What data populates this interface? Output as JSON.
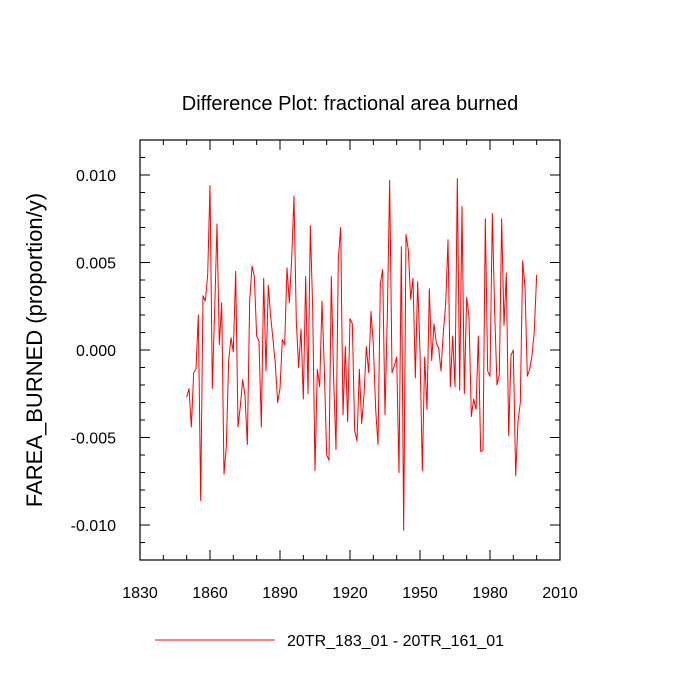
{
  "chart_data": {
    "type": "line",
    "title": "Difference Plot: fractional area burned",
    "xlabel": "",
    "ylabel": "FAREA_BURNED  (proportion/y)",
    "xlim": [
      1830,
      2010
    ],
    "ylim": [
      -0.012,
      0.012
    ],
    "xticks": [
      1830,
      1860,
      1890,
      1920,
      1950,
      1980,
      2010
    ],
    "xtick_labels": [
      "1830",
      "1860",
      "1890",
      "1920",
      "1950",
      "1980",
      "2010"
    ],
    "yticks": [
      -0.01,
      -0.005,
      0.0,
      0.005,
      0.01
    ],
    "ytick_labels": [
      "-0.010",
      "-0.005",
      "0.000",
      "0.005",
      "0.010"
    ],
    "grid": false,
    "legend_position": "bottom-center",
    "series": [
      {
        "name": "20TR_183_01 - 20TR_161_01",
        "color": "#ff0000",
        "x_start": 1850,
        "x_step": 1,
        "values": [
          -0.0027,
          -0.0022,
          -0.0044,
          -0.0013,
          -0.0011,
          0.002,
          -0.0086,
          0.0031,
          0.0028,
          0.0043,
          0.0094,
          -0.0022,
          0.0023,
          0.0072,
          0.0003,
          0.0027,
          -0.0071,
          -0.0055,
          -0.0006,
          0.0007,
          -0.0001,
          0.0045,
          -0.0044,
          -0.0032,
          -0.0017,
          -0.0026,
          -0.0054,
          0.0028,
          0.0048,
          0.0042,
          0.0008,
          0.0005,
          -0.0044,
          0.0041,
          -0.0012,
          0.0037,
          0.0019,
          0.0006,
          -0.0008,
          -0.003,
          -0.0022,
          0.0006,
          0.0003,
          0.0047,
          0.0027,
          0.0052,
          0.0088,
          0.0016,
          -0.001,
          0.0012,
          -0.0028,
          0.0042,
          -0.0025,
          0.0071,
          0.0024,
          -0.0069,
          -0.0011,
          -0.0021,
          0.0028,
          -0.0011,
          -0.006,
          -0.0063,
          0.0042,
          -0.0017,
          -0.0057,
          0.0052,
          0.007,
          -0.0037,
          0.0002,
          -0.0041,
          0.0018,
          0.0015,
          -0.0046,
          -0.0052,
          -0.0011,
          -0.0042,
          -0.0026,
          0.0002,
          -0.0013,
          0.0022,
          0.0003,
          -0.0034,
          -0.0054,
          0.0038,
          0.0046,
          -0.0037,
          0.002,
          0.0097,
          -0.0013,
          -0.0009,
          -0.0004,
          -0.007,
          0.0059,
          -0.0103,
          0.0066,
          0.0057,
          0.0029,
          0.0041,
          -0.0016,
          0.0039,
          -0.0001,
          -0.0069,
          -0.0004,
          -0.0034,
          0.0035,
          -0.0006,
          0.0015,
          0.0004,
          0.0001,
          -0.0012,
          0.001,
          0.0026,
          0.0063,
          -0.0021,
          0.0008,
          -0.0021,
          0.0098,
          -0.0023,
          0.0082,
          -0.0025,
          0.003,
          0.0019,
          -0.0038,
          -0.0028,
          -0.0034,
          0.0008,
          -0.0058,
          -0.0057,
          0.0075,
          -0.0012,
          -0.0015,
          0.0078,
          0.0022,
          -0.002,
          -0.0014,
          0.0075,
          0.0014,
          0.0044,
          -0.0049,
          -0.0003,
          0.0,
          -0.0072,
          -0.0041,
          -0.003,
          0.0051,
          0.0036,
          -0.0015,
          -0.0011,
          -0.0003,
          0.0011,
          0.0043
        ]
      }
    ]
  }
}
